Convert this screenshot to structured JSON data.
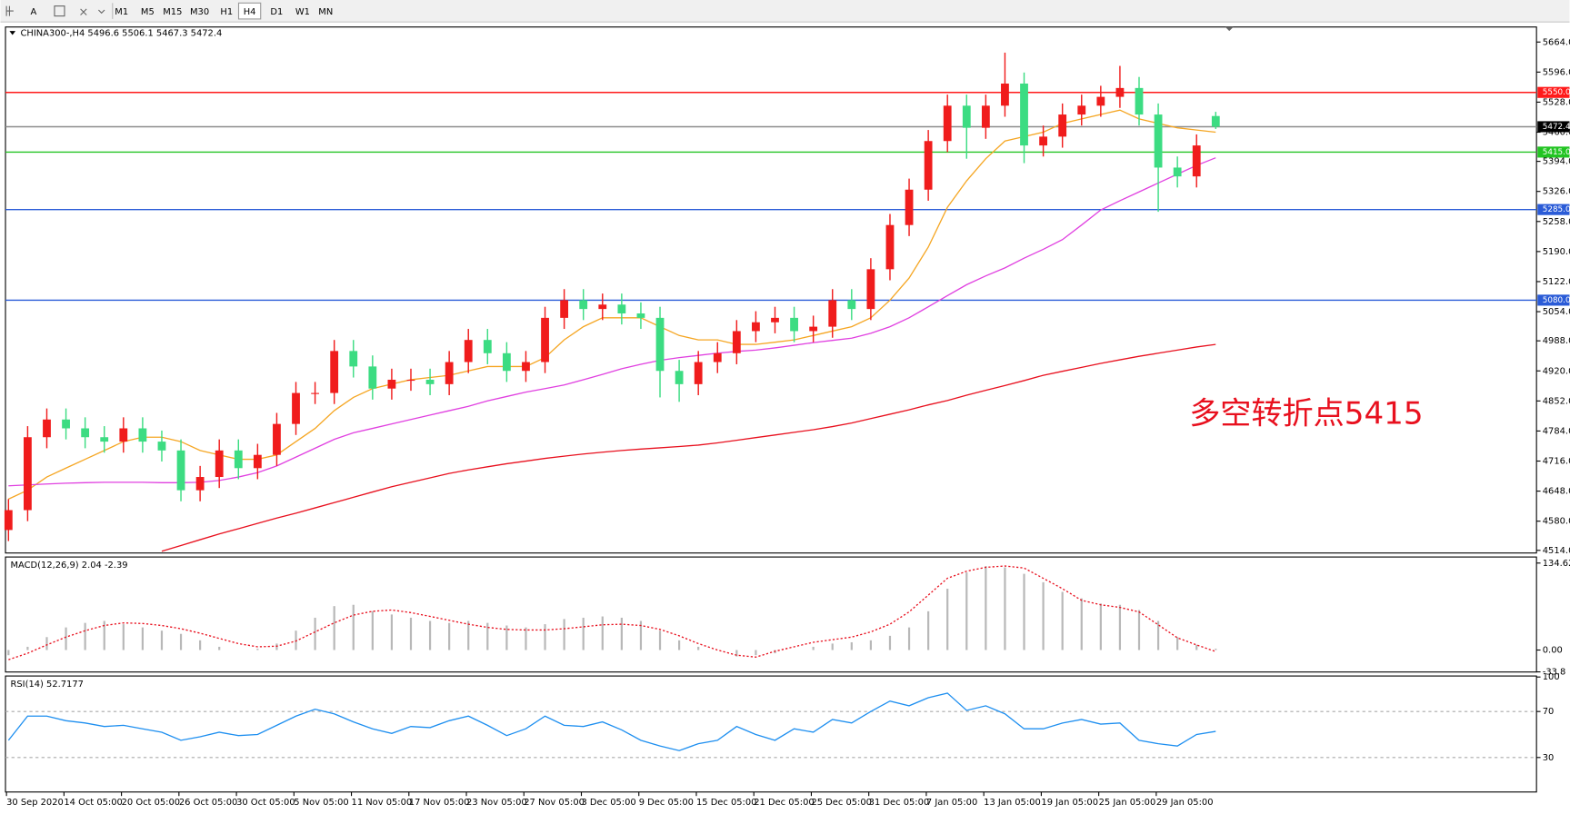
{
  "toolbar": {
    "text_tool": "A",
    "timeframes": [
      "M1",
      "M5",
      "M15",
      "M30",
      "H1",
      "H4",
      "D1",
      "W1",
      "MN"
    ]
  },
  "chart_data": [
    {
      "type": "candlestick",
      "title": "CHINA300-,H4 5496.6 5506.1 5467.3 5472.4",
      "annotation": "多空转折点5415",
      "annotation_color": "#e8101e",
      "up_color": "#f01c1c",
      "down_color": "#3cdc82",
      "categories": [
        "30 Sep 2020",
        null,
        null,
        "14 Oct 05:00",
        null,
        null,
        "20 Oct 05:00",
        null,
        null,
        "26 Oct 05:00",
        null,
        null,
        "30 Oct 05:00",
        null,
        null,
        "5 Nov 05:00",
        null,
        null,
        "11 Nov 05:00",
        null,
        null,
        "17 Nov 05:00",
        null,
        null,
        "23 Nov 05:00",
        null,
        null,
        "27 Nov 05:00",
        null,
        null,
        "3 Dec 05:00",
        null,
        null,
        "9 Dec 05:00",
        null,
        null,
        "15 Dec 05:00",
        null,
        null,
        "21 Dec 05:00",
        null,
        null,
        "25 Dec 05:00",
        null,
        null,
        "31 Dec 05:00",
        null,
        null,
        "7 Jan 05:00",
        null,
        null,
        "13 Jan 05:00",
        null,
        null,
        "19 Jan 05:00",
        null,
        null,
        "25 Jan 05:00",
        null,
        null,
        "29 Jan 05:00",
        null,
        null,
        null
      ],
      "open": [
        4560,
        4605,
        4770,
        4810,
        4790,
        4770,
        4760,
        4790,
        4760,
        4740,
        4650,
        4680,
        4740,
        4700,
        4730,
        4800,
        4870,
        4870,
        4965,
        4930,
        4880,
        4900,
        4900,
        4890,
        4940,
        4990,
        4960,
        4920,
        4940,
        5040,
        5080,
        5060,
        5070,
        5050,
        5040,
        4920,
        4890,
        4940,
        4960,
        5010,
        5030,
        5040,
        5010,
        5020,
        5080,
        5060,
        5150,
        5250,
        5330,
        5440,
        5520,
        5470,
        5520,
        5570,
        5430,
        5450,
        5500,
        5520,
        5540,
        5560,
        5500,
        5380,
        5360,
        5496.6
      ],
      "high": [
        4630,
        4795,
        4835,
        4835,
        4815,
        4795,
        4815,
        4815,
        4785,
        4765,
        4705,
        4765,
        4765,
        4755,
        4825,
        4895,
        4895,
        4990,
        4990,
        4955,
        4925,
        4925,
        4925,
        4965,
        5015,
        5015,
        4985,
        4965,
        5065,
        5105,
        5105,
        5095,
        5095,
        5075,
        5065,
        4945,
        4965,
        4985,
        5035,
        5055,
        5065,
        5065,
        5045,
        5105,
        5105,
        5175,
        5275,
        5355,
        5465,
        5545,
        5545,
        5545,
        5640,
        5595,
        5475,
        5525,
        5545,
        5565,
        5610,
        5585,
        5525,
        5405,
        5455,
        5506.1
      ],
      "low": [
        4535,
        4580,
        4745,
        4765,
        4745,
        4735,
        4735,
        4735,
        4715,
        4625,
        4625,
        4655,
        4675,
        4675,
        4705,
        4775,
        4845,
        4845,
        4905,
        4855,
        4855,
        4875,
        4865,
        4865,
        4915,
        4935,
        4895,
        4895,
        4915,
        5015,
        5035,
        5035,
        5025,
        5015,
        4860,
        4850,
        4865,
        4915,
        4935,
        4985,
        5005,
        4985,
        4985,
        4995,
        5035,
        5035,
        5125,
        5225,
        5305,
        5415,
        5400,
        5445,
        5495,
        5390,
        5405,
        5425,
        5475,
        5495,
        5515,
        5475,
        5280,
        5335,
        5335,
        5467.3
      ],
      "close": [
        4605,
        4770,
        4810,
        4790,
        4770,
        4760,
        4790,
        4760,
        4740,
        4650,
        4680,
        4740,
        4700,
        4730,
        4800,
        4870,
        4870,
        4965,
        4930,
        4880,
        4900,
        4900,
        4890,
        4940,
        4990,
        4960,
        4920,
        4940,
        5040,
        5080,
        5060,
        5070,
        5050,
        5040,
        4920,
        4890,
        4940,
        4960,
        5010,
        5030,
        5040,
        5010,
        5020,
        5080,
        5060,
        5150,
        5250,
        5330,
        5440,
        5520,
        5470,
        5520,
        5570,
        5430,
        5450,
        5500,
        5520,
        5540,
        5560,
        5500,
        5380,
        5360,
        5430,
        5472.4
      ],
      "series": [
        {
          "color": "#f5a623",
          "values": [
            4630,
            4650,
            4680,
            4700,
            4720,
            4740,
            4760,
            4770,
            4770,
            4760,
            4740,
            4730,
            4720,
            4720,
            4730,
            4760,
            4790,
            4830,
            4860,
            4880,
            4890,
            4900,
            4905,
            4910,
            4920,
            4930,
            4930,
            4930,
            4950,
            4990,
            5020,
            5040,
            5040,
            5040,
            5020,
            5000,
            4990,
            4990,
            4980,
            4980,
            4985,
            4990,
            5000,
            5010,
            5020,
            5040,
            5080,
            5130,
            5200,
            5290,
            5350,
            5400,
            5440,
            5450,
            5460,
            5480,
            5490,
            5500,
            5510,
            5490,
            5480,
            5470,
            5465,
            5460
          ]
        },
        {
          "color": "#e040e0",
          "values": [
            4660,
            4662,
            4664,
            4666,
            4667,
            4668,
            4668,
            4668,
            4667,
            4667,
            4668,
            4672,
            4680,
            4690,
            4705,
            4725,
            4745,
            4765,
            4780,
            4790,
            4800,
            4810,
            4820,
            4830,
            4840,
            4852,
            4862,
            4872,
            4880,
            4888,
            4900,
            4912,
            4925,
            4935,
            4944,
            4950,
            4955,
            4960,
            4964,
            4967,
            4972,
            4978,
            4984,
            4989,
            4994,
            5005,
            5020,
            5040,
            5065,
            5090,
            5115,
            5135,
            5153,
            5175,
            5195,
            5217,
            5250,
            5284,
            5305,
            5325,
            5345,
            5365,
            5385,
            5402
          ]
        },
        {
          "color": "#e8101e",
          "values": [
            null,
            null,
            null,
            null,
            null,
            null,
            null,
            null,
            4512,
            4525,
            4538,
            4551,
            4563,
            4575,
            4587,
            4598,
            4610,
            4622,
            4634,
            4646,
            4658,
            4668,
            4678,
            4688,
            4696,
            4703,
            4710,
            4716,
            4722,
            4727,
            4732,
            4736,
            4740,
            4743,
            4746,
            4749,
            4752,
            4757,
            4763,
            4769,
            4775,
            4781,
            4787,
            4794,
            4802,
            4812,
            4822,
            4832,
            4843,
            4853,
            4865,
            4876,
            4887,
            4898,
            4910,
            4919,
            4928,
            4937,
            4945,
            4953,
            4960,
            4967,
            4974,
            4980
          ]
        }
      ],
      "hlines": [
        {
          "value": 5550,
          "label": "5550.0",
          "color": "#ff1a1a"
        },
        {
          "value": 5472.4,
          "label": "5472.4",
          "color": "#8c8c8c",
          "tag_color": "#000000"
        },
        {
          "value": 5415,
          "label": "5415.0",
          "color": "#22c422"
        },
        {
          "value": 5285,
          "label": "5285.0",
          "color": "#2a5bd7"
        },
        {
          "value": 5080,
          "label": "5080.0",
          "color": "#2a5bd7"
        }
      ],
      "ylim": [
        4508,
        5698
      ],
      "yticks": [
        {
          "value": 5664,
          "label": "5664.0"
        },
        {
          "value": 5596,
          "label": "5596.0"
        },
        {
          "value": 5528,
          "label": "5528.0"
        },
        {
          "value": 5460,
          "label": "5460.0"
        },
        {
          "value": 5394,
          "label": "5394.0"
        },
        {
          "value": 5326,
          "label": "5326.0"
        },
        {
          "value": 5258,
          "label": "5258.0"
        },
        {
          "value": 5190,
          "label": "5190.0"
        },
        {
          "value": 5122,
          "label": "5122.0"
        },
        {
          "value": 5054,
          "label": "5054.0"
        },
        {
          "value": 4988,
          "label": "4988.0"
        },
        {
          "value": 4920,
          "label": "4920.0"
        },
        {
          "value": 4852,
          "label": "4852.0"
        },
        {
          "value": 4784,
          "label": "4784.0"
        },
        {
          "value": 4716,
          "label": "4716.0"
        },
        {
          "value": 4648,
          "label": "4648.0"
        },
        {
          "value": 4580,
          "label": "4580.0"
        },
        {
          "value": 4514,
          "label": "4514.0"
        }
      ]
    },
    {
      "type": "macd",
      "title": "MACD(12,26,9) 2.04 -2.39",
      "color": "#b8b8b8",
      "values": [
        -8,
        5,
        20,
        35,
        42,
        45,
        40,
        35,
        30,
        25,
        15,
        5,
        0,
        2,
        10,
        30,
        50,
        68,
        70,
        60,
        55,
        50,
        45,
        42,
        45,
        42,
        38,
        35,
        40,
        48,
        50,
        52,
        50,
        45,
        30,
        15,
        5,
        0,
        -10,
        -8,
        -5,
        0,
        5,
        10,
        12,
        15,
        22,
        35,
        60,
        95,
        120,
        130,
        128,
        118,
        105,
        90,
        80,
        72,
        70,
        62,
        45,
        20,
        8,
        2.04
      ],
      "signal": {
        "color": "#e8101e",
        "values": [
          -15,
          -5,
          8,
          20,
          30,
          38,
          42,
          41,
          38,
          33,
          26,
          18,
          10,
          5,
          6,
          14,
          28,
          42,
          54,
          60,
          62,
          58,
          52,
          46,
          40,
          35,
          32,
          31,
          31,
          33,
          36,
          39,
          40,
          38,
          32,
          22,
          10,
          0,
          -8,
          -11,
          -2,
          5,
          12,
          16,
          20,
          28,
          40,
          59,
          85,
          111,
          122,
          128,
          130,
          127,
          111,
          95,
          77,
          70,
          66,
          59,
          39,
          19,
          8,
          -2.39
        ]
      },
      "ylim": [
        -34,
        144
      ],
      "yticks": [
        134.62,
        {
          "value": 0,
          "label": "0.00"
        },
        -33.8
      ]
    },
    {
      "type": "line",
      "title": "RSI(14) 52.7177",
      "color": "#1e8ff0",
      "values": [
        45,
        66,
        66,
        62,
        60,
        57,
        58,
        55,
        52,
        45,
        48,
        52,
        49,
        50,
        58,
        66,
        72,
        68,
        61,
        55,
        51,
        57,
        56,
        62,
        66,
        58,
        49,
        55,
        66,
        58,
        57,
        61,
        54,
        45,
        40,
        36,
        42,
        45,
        57,
        50,
        45,
        55,
        52,
        63,
        60,
        70,
        79,
        75,
        82,
        86,
        71,
        75,
        68,
        55,
        55,
        60,
        63,
        59,
        60,
        45,
        42,
        40,
        50,
        52.7177
      ],
      "ylim": [
        0,
        100
      ],
      "yticks": [
        100,
        70,
        30
      ]
    }
  ]
}
